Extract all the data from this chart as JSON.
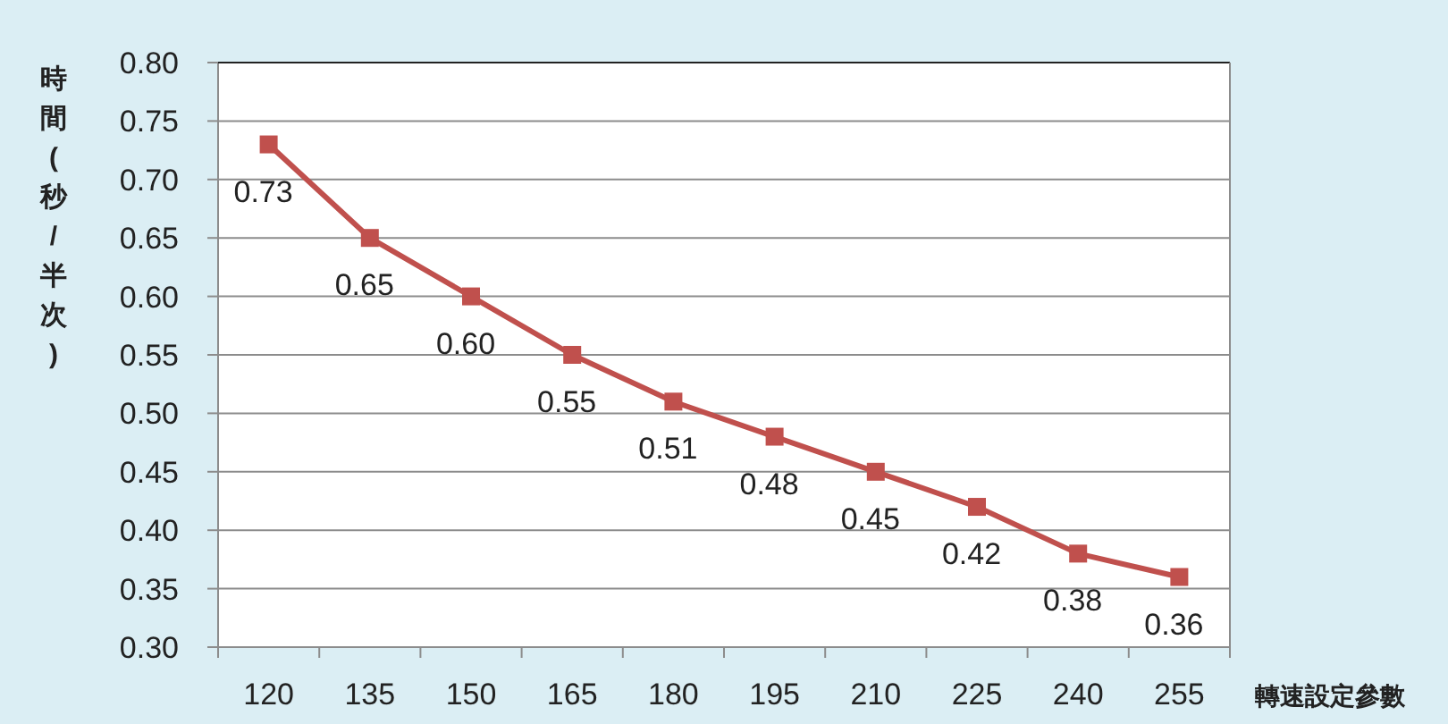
{
  "chart_data": {
    "type": "line",
    "xlabel": "轉速設定參數",
    "ylabel": "時間(秒/半次)",
    "categories": [
      "120",
      "135",
      "150",
      "165",
      "180",
      "195",
      "210",
      "225",
      "240",
      "255"
    ],
    "series": [
      {
        "color": "#c0504d",
        "values": [
          0.73,
          0.65,
          0.6,
          0.55,
          0.51,
          0.48,
          0.45,
          0.42,
          0.38,
          0.36
        ],
        "value_labels": [
          "0.73",
          "0.65",
          "0.60",
          "0.55",
          "0.51",
          "0.48",
          "0.45",
          "0.42",
          "0.38",
          "0.36"
        ]
      }
    ],
    "ylim": [
      0.3,
      0.8
    ],
    "yticks": [
      {
        "value": 0.3,
        "label": "0.30"
      },
      {
        "value": 0.35,
        "label": "0.35"
      },
      {
        "value": 0.4,
        "label": "0.40"
      },
      {
        "value": 0.45,
        "label": "0.45"
      },
      {
        "value": 0.5,
        "label": "0.50"
      },
      {
        "value": 0.55,
        "label": "0.55"
      },
      {
        "value": 0.6,
        "label": "0.60"
      },
      {
        "value": 0.65,
        "label": "0.65"
      },
      {
        "value": 0.7,
        "label": "0.70"
      },
      {
        "value": 0.75,
        "label": "0.75"
      },
      {
        "value": 0.8,
        "label": "0.80"
      }
    ],
    "grid": "y",
    "marker": "square",
    "line_style": "solid"
  }
}
